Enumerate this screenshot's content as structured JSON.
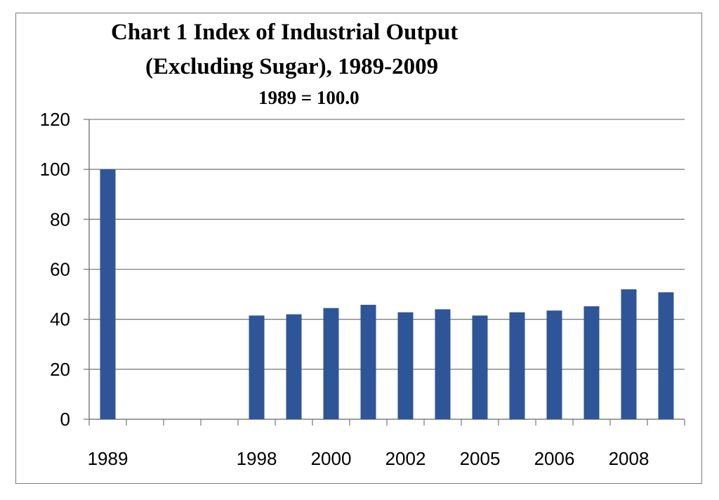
{
  "chart_data": {
    "type": "bar",
    "title": "Chart 1  Index of Industrial Output",
    "subtitle": "(Excluding Sugar), 1989-2009",
    "base_note": "1989 = 100.0",
    "xlabel": "",
    "ylabel": "",
    "ylim": [
      0,
      120
    ],
    "yticks": [
      0,
      20,
      40,
      60,
      80,
      100,
      120
    ],
    "grid": true,
    "legend": "none",
    "bar_color": "#2e5597",
    "categories": [
      "1989",
      "",
      "",
      "",
      "1998",
      "",
      "2000",
      "",
      "2002",
      "",
      "2005",
      "",
      "2006",
      "",
      "2008",
      ""
    ],
    "values": [
      100,
      null,
      null,
      null,
      41.5,
      42.0,
      44.5,
      45.8,
      42.8,
      44.0,
      41.5,
      42.8,
      43.5,
      45.2,
      52.0,
      50.8
    ]
  }
}
